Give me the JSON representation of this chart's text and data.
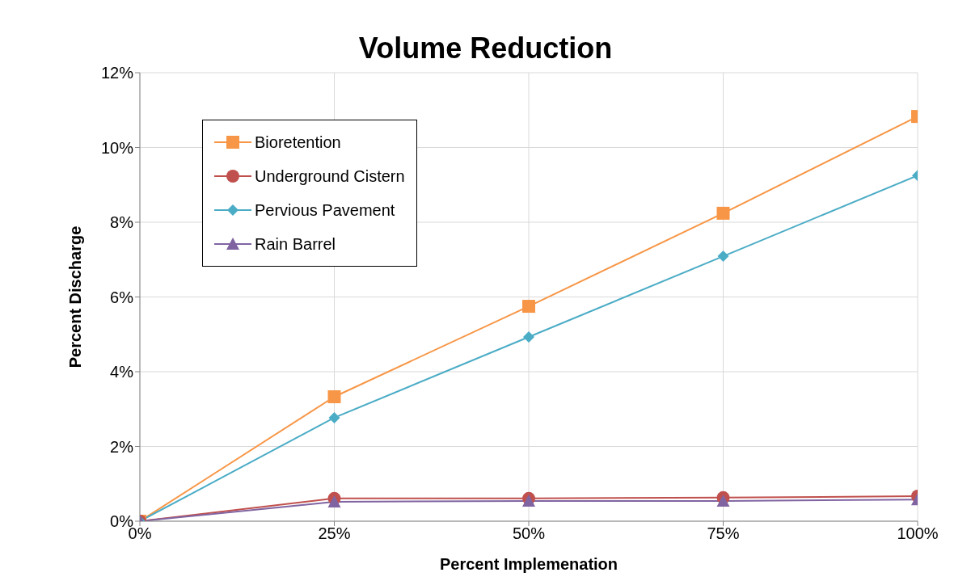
{
  "chart_data": {
    "type": "line",
    "title": "Volume Reduction",
    "xlabel": "Percent Implemenation",
    "ylabel": "Percent Discharge",
    "x": [
      0,
      25,
      50,
      75,
      100
    ],
    "xlim": [
      0,
      100
    ],
    "xticks": [
      {
        "value": 0,
        "label": "0%"
      },
      {
        "value": 25,
        "label": "25%"
      },
      {
        "value": 50,
        "label": "50%"
      },
      {
        "value": 75,
        "label": "75%"
      },
      {
        "value": 100,
        "label": "100%"
      }
    ],
    "ylim": [
      0,
      12
    ],
    "yticks": [
      {
        "value": 0,
        "label": "0%"
      },
      {
        "value": 2,
        "label": "2%"
      },
      {
        "value": 4,
        "label": "4%"
      },
      {
        "value": 6,
        "label": "6%"
      },
      {
        "value": 8,
        "label": "8%"
      },
      {
        "value": 10,
        "label": "10%"
      },
      {
        "value": 12,
        "label": "12%"
      }
    ],
    "grid": true,
    "legend": "top left",
    "series": [
      {
        "name": "Bioretention",
        "color": "#f79646",
        "marker": "square",
        "values": [
          0,
          3.33,
          5.75,
          8.24,
          10.83
        ]
      },
      {
        "name": "Underground Cistern",
        "color": "#c0504d",
        "marker": "circle",
        "values": [
          0,
          0.61,
          0.61,
          0.63,
          0.67
        ]
      },
      {
        "name": "Pervious Pavement",
        "color": "#4bacc6",
        "marker": "diamond",
        "values": [
          0,
          2.77,
          4.93,
          7.09,
          9.25
        ]
      },
      {
        "name": "Rain Barrel",
        "color": "#8064a2",
        "marker": "triangle",
        "values": [
          0,
          0.52,
          0.54,
          0.54,
          0.58
        ]
      }
    ]
  }
}
